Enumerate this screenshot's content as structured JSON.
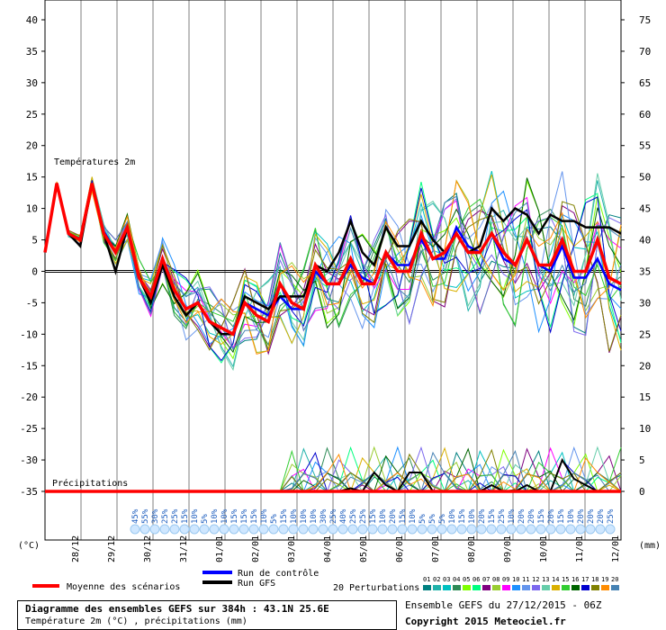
{
  "chart_data": {
    "type": "line",
    "left_axis_unit": "(°C)",
    "right_axis_unit": "(mm)",
    "left_ticks": [
      40,
      35,
      30,
      25,
      20,
      15,
      10,
      5,
      0,
      -5,
      -10,
      -15,
      -20,
      -25,
      -30,
      -35
    ],
    "right_ticks": [
      75,
      70,
      65,
      60,
      55,
      50,
      45,
      40,
      35,
      30,
      25,
      20,
      15,
      10,
      5,
      0
    ],
    "x_labels": [
      "28/12",
      "29/12",
      "30/12",
      "31/12",
      "01/01",
      "02/01",
      "03/01",
      "04/01",
      "05/01",
      "06/01",
      "07/01",
      "08/01",
      "09/01",
      "10/01",
      "11/01",
      "12/01"
    ],
    "temp_label": "Températures 2m",
    "precip_label": "Précipitations",
    "control_run_temp": [
      3,
      14,
      6,
      5,
      14,
      6,
      3,
      7,
      -1,
      -4,
      2,
      -3,
      -6,
      -5,
      -8,
      -9,
      -10,
      -5,
      -6,
      -7,
      -4,
      -6,
      -6,
      0,
      -2,
      -2,
      1,
      -1,
      -2,
      3,
      1,
      1,
      5,
      2,
      2,
      7,
      4,
      3,
      6,
      2,
      1,
      5,
      1,
      0,
      4,
      -1,
      -1,
      2,
      -2,
      -3
    ],
    "gfs_run_temp": [
      3,
      14,
      6,
      4,
      14,
      6,
      0,
      7,
      -1,
      -5,
      1,
      -4,
      -7,
      -5,
      -8,
      -10,
      -10,
      -4,
      -5,
      -6,
      -4,
      -4,
      -4,
      1,
      0,
      3,
      8,
      3,
      1,
      7,
      4,
      4,
      8,
      5,
      3,
      6,
      3,
      4,
      10,
      8,
      10,
      9,
      6,
      9,
      8,
      8,
      7,
      7,
      7,
      6
    ],
    "mean_temp": [
      3,
      14,
      6,
      5,
      14,
      6,
      3,
      7,
      -1,
      -4,
      2,
      -3,
      -6,
      -5,
      -8,
      -9,
      -10,
      -5,
      -7,
      -8,
      -2,
      -5,
      -6,
      1,
      -2,
      -2,
      2,
      -2,
      -2,
      3,
      0,
      0,
      6,
      2,
      3,
      6,
      3,
      3,
      6,
      3,
      1,
      5,
      1,
      1,
      5,
      0,
      0,
      5,
      -1,
      -2
    ],
    "gfs_precip_mm": [
      0,
      0,
      0,
      0,
      0,
      0,
      0,
      0,
      0,
      0,
      0,
      0,
      0,
      0,
      0,
      0,
      0,
      0,
      0,
      0,
      0,
      0,
      0,
      0,
      0,
      0,
      0.5,
      0,
      3,
      1,
      0,
      3,
      3,
      0,
      0,
      0,
      0,
      0,
      1,
      0,
      0,
      1,
      0,
      0,
      5,
      2,
      1,
      0,
      0,
      0
    ],
    "perturbation_counts": [
      "45%",
      "55%",
      "30%",
      "25%",
      "25%",
      "15%",
      "10%",
      "5%",
      "10%",
      "10%",
      "15%",
      "15%",
      "15%",
      "10%",
      "5%",
      "15%",
      "10%",
      "10%",
      "10%",
      "30%",
      "25%",
      "40%",
      "25%",
      "25%",
      "15%",
      "10%",
      "20%",
      "15%",
      "10%",
      "5%",
      "5%",
      "5%",
      "10%",
      "15%",
      "10%",
      "20%",
      "15%",
      "25%",
      "10%",
      "20%",
      "20%",
      "15%",
      "20%",
      "15%",
      "10%",
      "20%",
      "20%",
      "20%",
      "25%"
    ],
    "legend": {
      "control": "Run de contrôle",
      "gfs": "Run GFS",
      "mean": "Moyenne des scénarios",
      "perturbations": "20 Perturbations",
      "member_ids": [
        "01",
        "02",
        "03",
        "04",
        "05",
        "06",
        "07",
        "08",
        "09",
        "10",
        "11",
        "12",
        "13",
        "14",
        "15",
        "16",
        "17",
        "18",
        "19",
        "20"
      ]
    }
  },
  "footer": {
    "title": "Diagramme des ensembles GEFS sur 384h : 43.1N 25.6E",
    "subtitle": "Température 2m (°C) , précipitations (mm)",
    "ensemble": "Ensemble GEFS du 27/12/2015 - 06Z",
    "copyright": "Copyright 2015 Meteociel.fr"
  },
  "colors": {
    "control": "#0000ff",
    "gfs": "#000000",
    "mean": "#ff0000",
    "members": [
      "#008080",
      "#20b2aa",
      "#00c0c0",
      "#2e8b57",
      "#7fff00",
      "#00ff7f",
      "#800080",
      "#9acd32",
      "#ff00ff",
      "#1e90ff",
      "#6495ed",
      "#7b68ee",
      "#66cdaa",
      "#dab000",
      "#32cd32",
      "#006400",
      "#0000cd",
      "#808000",
      "#ff8c00",
      "#4682b4"
    ]
  }
}
